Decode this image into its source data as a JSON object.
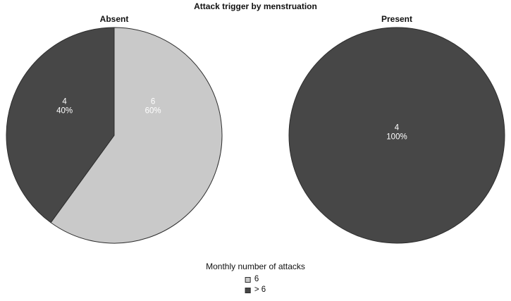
{
  "title": "Attack trigger by menstruation",
  "colors": {
    "light": "#c9c9c9",
    "dark": "#474747",
    "stroke": "#2e2e2e",
    "label_text": "#ffffff"
  },
  "legend": {
    "title": "Monthly number of attacks",
    "items": [
      {
        "label": "6",
        "color": "light"
      },
      {
        "label": "> 6",
        "color": "dark"
      }
    ]
  },
  "chart_data": [
    {
      "type": "pie",
      "title": "Absent",
      "start_angle": 0,
      "legend_position": "bottom-center",
      "slices": [
        {
          "label": "6",
          "value": 6,
          "percent": 60,
          "color": "light",
          "label_xy": [
            0.36,
            -0.29
          ]
        },
        {
          "label": "> 6",
          "value": 4,
          "percent": 40,
          "color": "dark",
          "label_xy": [
            -0.46,
            -0.29
          ]
        }
      ]
    },
    {
      "type": "pie",
      "title": "Present",
      "start_angle": 0,
      "legend_position": "bottom-center",
      "slices": [
        {
          "label": "> 6",
          "value": 4,
          "percent": 100,
          "color": "dark",
          "label_xy": [
            0,
            -0.05
          ]
        }
      ]
    }
  ]
}
